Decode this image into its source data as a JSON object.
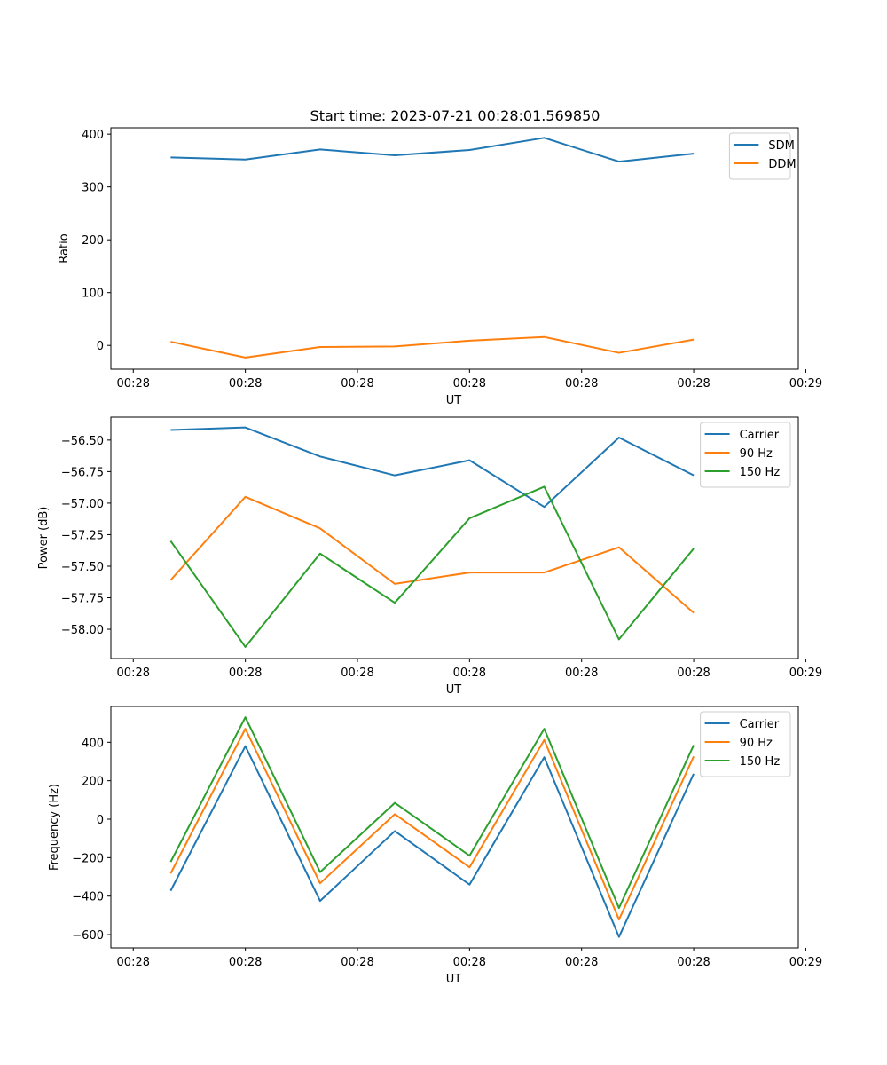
{
  "figure_title": "Start time: 2023-07-21 00:28:01.569850",
  "colors": {
    "blue": "#1f77b4",
    "orange": "#ff7f0e",
    "green": "#2ca02c"
  },
  "chart_data": [
    {
      "type": "line",
      "title": "Start time: 2023-07-21 00:28:01.569850",
      "xlabel": "UT",
      "ylabel": "Ratio",
      "x": [
        1,
        2,
        3,
        4,
        5,
        6,
        7,
        8
      ],
      "xlim": [
        0.2,
        9.4
      ],
      "xticks": [
        0.5,
        2,
        3.5,
        5,
        6.5,
        8,
        9.5
      ],
      "xtick_labels": [
        "00:28",
        "00:28",
        "00:28",
        "00:28",
        "00:28",
        "00:28",
        "00:29"
      ],
      "ylim": [
        -45,
        412
      ],
      "yticks": [
        0,
        100,
        200,
        300,
        400
      ],
      "ytick_labels": [
        "0",
        "100",
        "200",
        "300",
        "400"
      ],
      "legend_position": "top-right",
      "series": [
        {
          "name": "SDM",
          "color": "#1f77b4",
          "values": [
            356,
            352,
            371,
            360,
            370,
            393,
            348,
            363
          ]
        },
        {
          "name": "DDM",
          "color": "#ff7f0e",
          "values": [
            7,
            -23,
            -3,
            -2,
            9,
            16,
            -14,
            11
          ]
        }
      ]
    },
    {
      "type": "line",
      "title": "",
      "xlabel": "UT",
      "ylabel": "Power (dB)",
      "x": [
        1,
        2,
        3,
        4,
        5,
        6,
        7,
        8
      ],
      "xlim": [
        0.2,
        9.4
      ],
      "xticks": [
        0.5,
        2,
        3.5,
        5,
        6.5,
        8,
        9.5
      ],
      "xtick_labels": [
        "00:28",
        "00:28",
        "00:28",
        "00:28",
        "00:28",
        "00:28",
        "00:29"
      ],
      "ylim": [
        -58.232,
        -56.318
      ],
      "yticks": [
        -58.0,
        -57.75,
        -57.5,
        -57.25,
        -57.0,
        -56.75,
        -56.5
      ],
      "ytick_labels": [
        "−58.00",
        "−57.75",
        "−57.50",
        "−57.25",
        "−57.00",
        "−56.75",
        "−56.50"
      ],
      "legend_position": "top-right",
      "series": [
        {
          "name": "Carrier",
          "color": "#1f77b4",
          "values": [
            -56.42,
            -56.4,
            -56.63,
            -56.78,
            -56.66,
            -57.03,
            -56.48,
            -56.78
          ]
        },
        {
          "name": "90 Hz",
          "color": "#ff7f0e",
          "values": [
            -57.61,
            -56.95,
            -57.2,
            -57.64,
            -57.55,
            -57.55,
            -57.35,
            -57.87
          ]
        },
        {
          "name": "150 Hz",
          "color": "#2ca02c",
          "values": [
            -57.3,
            -58.14,
            -57.4,
            -57.79,
            -57.12,
            -56.87,
            -58.08,
            -57.36
          ]
        }
      ]
    },
    {
      "type": "line",
      "title": "",
      "xlabel": "UT",
      "ylabel": "Frequency (Hz)",
      "x": [
        1,
        2,
        3,
        4,
        5,
        6,
        7,
        8
      ],
      "xlim": [
        0.2,
        9.4
      ],
      "xticks": [
        0.5,
        2,
        3.5,
        5,
        6.5,
        8,
        9.5
      ],
      "xtick_labels": [
        "00:28",
        "00:28",
        "00:28",
        "00:28",
        "00:28",
        "00:28",
        "00:29"
      ],
      "ylim": [
        -669,
        586
      ],
      "yticks": [
        -600,
        -400,
        -200,
        0,
        200,
        400
      ],
      "ytick_labels": [
        "−600",
        "−400",
        "−200",
        "0",
        "200",
        "400"
      ],
      "legend_position": "top-right",
      "series": [
        {
          "name": "Carrier",
          "color": "#1f77b4",
          "values": [
            -372,
            380,
            -425,
            -62,
            -340,
            322,
            -612,
            236
          ]
        },
        {
          "name": "90 Hz",
          "color": "#ff7f0e",
          "values": [
            -282,
            470,
            -333,
            26,
            -250,
            412,
            -522,
            326
          ]
        },
        {
          "name": "150 Hz",
          "color": "#2ca02c",
          "values": [
            -222,
            530,
            -275,
            85,
            -190,
            470,
            -462,
            385
          ]
        }
      ]
    }
  ]
}
